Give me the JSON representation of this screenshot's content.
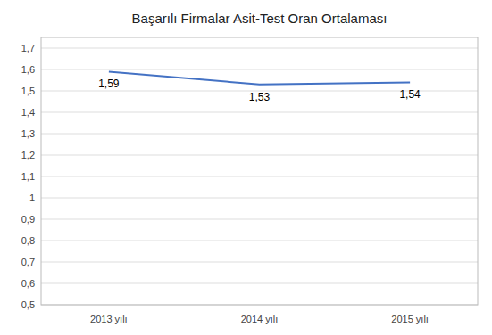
{
  "chart_data": {
    "type": "line",
    "title": "Başarılı Firmalar Asit-Test Oran Ortalaması",
    "categories": [
      "2013 yılı",
      "2014 yılı",
      "2015 yılı"
    ],
    "values": [
      1.59,
      1.53,
      1.54
    ],
    "value_labels": [
      "1,59",
      "1,53",
      "1,54"
    ],
    "data_labels": true,
    "color": "#4472C4",
    "ylim": [
      0.5,
      1.75
    ],
    "yticks": [
      {
        "value": 0.5,
        "label": "0,5"
      },
      {
        "value": 0.6,
        "label": "0,6"
      },
      {
        "value": 0.7,
        "label": "0,7"
      },
      {
        "value": 0.8,
        "label": "0,8"
      },
      {
        "value": 0.9,
        "label": "0,9"
      },
      1,
      {
        "value": 1.1,
        "label": "1,1"
      },
      {
        "value": 1.2,
        "label": "1,2"
      },
      {
        "value": 1.3,
        "label": "1,3"
      },
      {
        "value": 1.4,
        "label": "1,4"
      },
      {
        "value": 1.5,
        "label": "1,5"
      },
      {
        "value": 1.6,
        "label": "1,6"
      },
      {
        "value": 1.7,
        "label": "1,7"
      }
    ],
    "grid": true
  }
}
